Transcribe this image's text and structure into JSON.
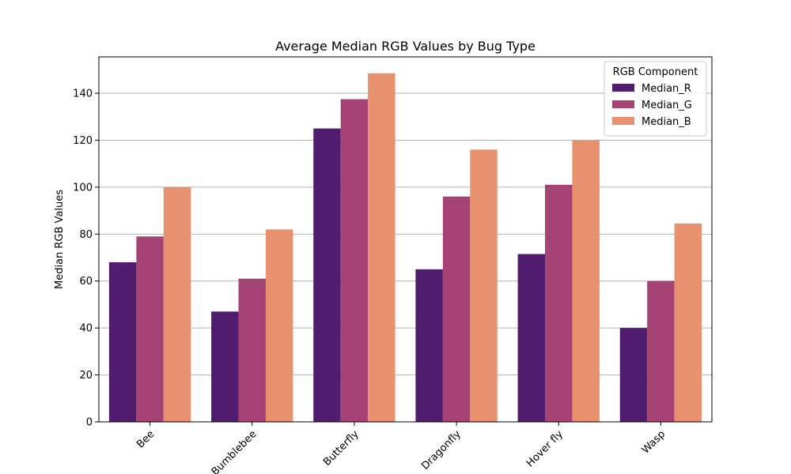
{
  "chart_data": {
    "type": "bar",
    "title": "Average Median RGB Values by Bug Type",
    "xlabel": "",
    "ylabel": "Median RGB Values",
    "categories": [
      "Bee",
      "Bumblebee",
      "Butterfly",
      "Dragonfly",
      "Hover fly",
      "Wasp"
    ],
    "series": [
      {
        "name": "Median_R",
        "color": "#4f1c6e",
        "values": [
          68,
          47,
          125,
          65,
          71.5,
          40
        ]
      },
      {
        "name": "Median_G",
        "color": "#a54474",
        "values": [
          79,
          61,
          137.5,
          96,
          101,
          60
        ]
      },
      {
        "name": "Median_B",
        "color": "#e8916f",
        "values": [
          100,
          82,
          148.5,
          116,
          120,
          84.5
        ]
      }
    ],
    "ylim": [
      0,
      155.5
    ],
    "yticks": [
      0,
      20,
      40,
      60,
      80,
      100,
      120,
      140
    ],
    "grid": "y",
    "legend": {
      "title": "RGB Component",
      "placement": "top-right"
    }
  }
}
